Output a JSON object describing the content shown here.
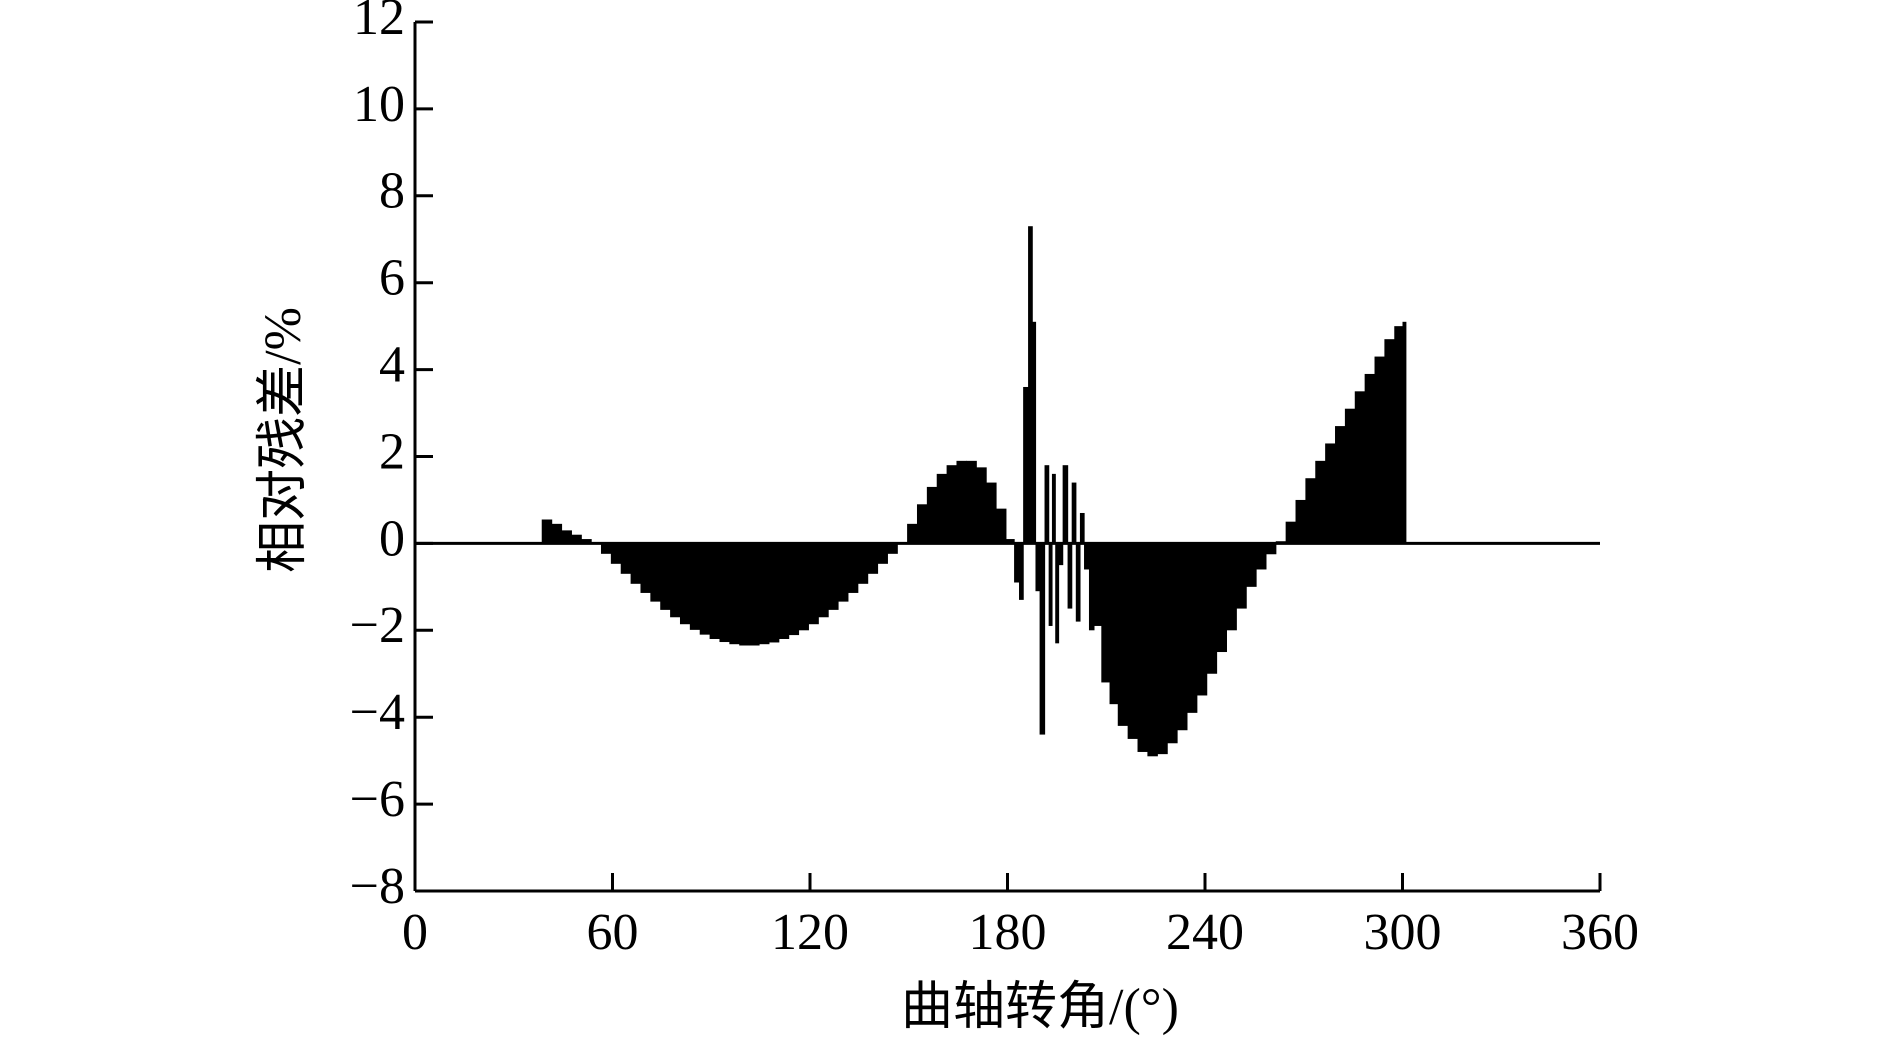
{
  "chart_data": {
    "type": "bar",
    "xlabel": "曲轴转角/(°)",
    "ylabel": "相对残差/%",
    "x": [
      40,
      43,
      46,
      49,
      52,
      55,
      58,
      61,
      64,
      67,
      70,
      73,
      76,
      79,
      82,
      85,
      88,
      91,
      94,
      97,
      100,
      103,
      106,
      109,
      112,
      115,
      118,
      121,
      124,
      127,
      130,
      133,
      136,
      139,
      142,
      145,
      148,
      151,
      154,
      157,
      160,
      163,
      166,
      169,
      172,
      175,
      178,
      181,
      183,
      184,
      185.5,
      187,
      188,
      189,
      190.5,
      192,
      193,
      194,
      195,
      196,
      197.5,
      199,
      200,
      201.5,
      202.5,
      204,
      205.5,
      207,
      210,
      212,
      215,
      218,
      221,
      224,
      227,
      230,
      233,
      236,
      239,
      242,
      245,
      248,
      251,
      254,
      257,
      260,
      263,
      266,
      269,
      272,
      275,
      278,
      281,
      284,
      287,
      290,
      293,
      296,
      299,
      301
    ],
    "values": [
      0.55,
      0.45,
      0.3,
      0.2,
      0.1,
      0,
      -0.24,
      -0.47,
      -0.7,
      -0.93,
      -1.14,
      -1.34,
      -1.53,
      -1.7,
      -1.86,
      -1.99,
      -2.1,
      -2.2,
      -2.27,
      -2.32,
      -2.35,
      -2.35,
      -2.32,
      -2.28,
      -2.2,
      -2.11,
      -2.0,
      -1.86,
      -1.7,
      -1.53,
      -1.34,
      -1.14,
      -0.93,
      -0.7,
      -0.47,
      -0.24,
      0,
      0.45,
      0.9,
      1.3,
      1.6,
      1.8,
      1.9,
      1.9,
      1.75,
      1.4,
      0.8,
      0.1,
      -0.9,
      -1.3,
      3.6,
      7.3,
      5.1,
      -1.1,
      -4.4,
      1.8,
      -1.9,
      1.6,
      -2.3,
      -0.5,
      1.8,
      -1.5,
      1.4,
      -1.8,
      0.7,
      -0.6,
      -2.0,
      -1.9,
      -3.2,
      -3.7,
      -4.2,
      -4.5,
      -4.8,
      -4.9,
      -4.85,
      -4.6,
      -4.3,
      -3.9,
      -3.5,
      -3.0,
      -2.5,
      -2.0,
      -1.5,
      -1.0,
      -0.6,
      -0.25,
      0.05,
      0.5,
      1.0,
      1.5,
      1.9,
      2.3,
      2.7,
      3.1,
      3.5,
      3.9,
      4.3,
      4.7,
      5.0,
      5.1
    ],
    "color": "#000000",
    "xlim": [
      0,
      360
    ],
    "xticks": [
      0,
      60,
      120,
      180,
      240,
      300,
      360
    ],
    "ylim": [
      -8,
      12
    ],
    "yticks": [
      {
        "value": -8,
        "label": "−8"
      },
      {
        "value": -6,
        "label": "−6"
      },
      {
        "value": -4,
        "label": "−4"
      },
      {
        "value": -2,
        "label": "−2"
      },
      0,
      2,
      4,
      6,
      8,
      10,
      12
    ]
  }
}
